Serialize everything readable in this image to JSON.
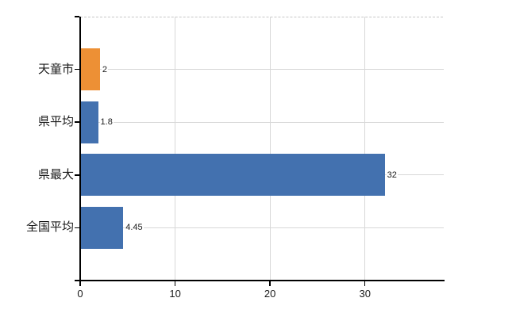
{
  "chart_data": {
    "type": "bar",
    "orientation": "horizontal",
    "title": "",
    "xlabel": "",
    "ylabel": "",
    "categories": [
      "天童市",
      "県平均",
      "県最大",
      "全国平均"
    ],
    "values": [
      2,
      1.8,
      32,
      4.45
    ],
    "value_labels": [
      "2",
      "1.8",
      "32",
      "4.45"
    ],
    "bar_colors": [
      "#ed9035",
      "#4371af",
      "#4371af",
      "#4371af"
    ],
    "x_ticks": [
      0,
      10,
      20,
      30
    ],
    "x_tick_labels": [
      "0",
      "10",
      "20",
      "30"
    ],
    "xlim": [
      0,
      38.3
    ],
    "grid": true,
    "legend": false
  },
  "colors": {
    "bar_orange": "#ed9035",
    "bar_blue": "#4371af",
    "gridline": "#d8d8d8",
    "top_border_dashed": "#c6c6c6",
    "axis": "#000000",
    "text": "#1a1a1a",
    "background": "#ffffff"
  }
}
